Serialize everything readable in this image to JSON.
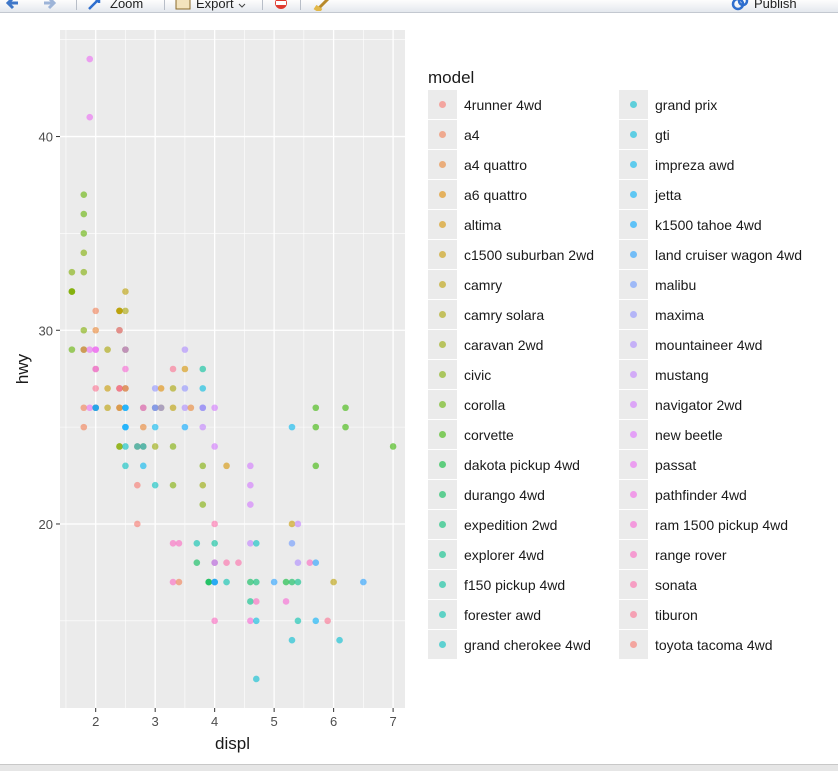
{
  "toolbar": {
    "zoom_label": "Zoom",
    "export_label": "Export",
    "publish_label": "Publish"
  },
  "colors": {
    "panel_bg": "#ebebeb",
    "grid": "#ffffff",
    "publish_icon": "#2f6fce",
    "export_icon": "#d9b26a",
    "zoom_icon": "#2f6fce"
  },
  "icons": [
    "back-arrow-icon",
    "forward-arrow-icon",
    "zoom-icon",
    "export-icon",
    "clear-plot-icon",
    "broom-icon",
    "publish-icon"
  ],
  "legend": {
    "title": "model",
    "entries": [
      {
        "label": "4runner 4wd",
        "color": "#F8766D"
      },
      {
        "label": "a4",
        "color": "#F27D52"
      },
      {
        "label": "a4 quattro",
        "color": "#EA8331"
      },
      {
        "label": "a6 quattro",
        "color": "#E08B00"
      },
      {
        "label": "altima",
        "color": "#D59200"
      },
      {
        "label": "c1500 suburban 2wd",
        "color": "#C89900"
      },
      {
        "label": "camry",
        "color": "#BA9E00"
      },
      {
        "label": "camry solara",
        "color": "#A9A400"
      },
      {
        "label": "caravan 2wd",
        "color": "#96A900"
      },
      {
        "label": "civic",
        "color": "#7FAD00"
      },
      {
        "label": "corolla",
        "color": "#62B200"
      },
      {
        "label": "corvette",
        "color": "#39B600"
      },
      {
        "label": "dakota pickup 4wd",
        "color": "#00B934"
      },
      {
        "label": "durango 4wd",
        "color": "#00BB57"
      },
      {
        "label": "expedition 2wd",
        "color": "#00BE71"
      },
      {
        "label": "explorer 4wd",
        "color": "#00BF87"
      },
      {
        "label": "f150 pickup 4wd",
        "color": "#00C09B"
      },
      {
        "label": "forester awd",
        "color": "#00C1AE"
      },
      {
        "label": "grand cherokee 4wd",
        "color": "#00C0C0"
      },
      {
        "label": "grand prix",
        "color": "#00BDD1"
      },
      {
        "label": "gti",
        "color": "#00BAE0"
      },
      {
        "label": "impreza awd",
        "color": "#00B5EE"
      },
      {
        "label": "jetta",
        "color": "#00AFF9"
      },
      {
        "label": "k1500 tahoe 4wd",
        "color": "#00A7FF"
      },
      {
        "label": "land cruiser wagon 4wd",
        "color": "#219FFF"
      },
      {
        "label": "malibu",
        "color": "#6A98FF"
      },
      {
        "label": "maxima",
        "color": "#8F91FF"
      },
      {
        "label": "mountaineer 4wd",
        "color": "#AC88FF"
      },
      {
        "label": "mustang",
        "color": "#C180FF"
      },
      {
        "label": "navigator 2wd",
        "color": "#D277FF"
      },
      {
        "label": "new beetle",
        "color": "#E070FF"
      },
      {
        "label": "passat",
        "color": "#EB6AF4"
      },
      {
        "label": "pathfinder 4wd",
        "color": "#F365E6"
      },
      {
        "label": "ram 1500 pickup 4wd",
        "color": "#F964D4"
      },
      {
        "label": "range rover",
        "color": "#FC66C0"
      },
      {
        "label": "sonata",
        "color": "#FE6BA9"
      },
      {
        "label": "tiburon",
        "color": "#FC708F"
      },
      {
        "label": "toyota tacoma 4wd",
        "color": "#F8766D"
      }
    ]
  },
  "chart_data": {
    "type": "scatter",
    "xlabel": "displ",
    "ylabel": "hwy",
    "xlim": [
      1.4,
      7.2
    ],
    "ylim": [
      10.5,
      45.5
    ],
    "xticks": [
      "2",
      "3",
      "4",
      "5",
      "6",
      "7"
    ],
    "yticks": [
      "20",
      "30",
      "40"
    ],
    "xtick_values": [
      2,
      3,
      4,
      5,
      6,
      7
    ],
    "ytick_values": [
      20,
      30,
      40
    ],
    "grid": true,
    "legend_position": "right",
    "alpha": 0.6,
    "points": [
      [
        1.6,
        33,
        9
      ],
      [
        1.6,
        32,
        9
      ],
      [
        1.6,
        32,
        9
      ],
      [
        1.6,
        29,
        10
      ],
      [
        1.6,
        32,
        9
      ],
      [
        1.8,
        37,
        10
      ],
      [
        1.8,
        35,
        10
      ],
      [
        1.8,
        36,
        10
      ],
      [
        1.8,
        34,
        9
      ],
      [
        1.8,
        33,
        9
      ],
      [
        1.8,
        30,
        9
      ],
      [
        1.8,
        29,
        10
      ],
      [
        1.8,
        26,
        1
      ],
      [
        1.8,
        25,
        1
      ],
      [
        1.8,
        29,
        1
      ],
      [
        1.9,
        44,
        31
      ],
      [
        1.9,
        41,
        31
      ],
      [
        1.9,
        29,
        31
      ],
      [
        1.9,
        26,
        31
      ],
      [
        2.0,
        31,
        1
      ],
      [
        2.0,
        30,
        2
      ],
      [
        2.0,
        28,
        1
      ],
      [
        2.0,
        26,
        2
      ],
      [
        2.0,
        29,
        32
      ],
      [
        2.0,
        29,
        31
      ],
      [
        2.0,
        28,
        31
      ],
      [
        2.0,
        27,
        36
      ],
      [
        2.0,
        26,
        36
      ],
      [
        2.0,
        26,
        21
      ],
      [
        2.0,
        26,
        23
      ],
      [
        2.2,
        26,
        6
      ],
      [
        2.2,
        27,
        5
      ],
      [
        2.2,
        29,
        7
      ],
      [
        2.4,
        31,
        4
      ],
      [
        2.4,
        30,
        8
      ],
      [
        2.4,
        27,
        8
      ],
      [
        2.4,
        24,
        8
      ],
      [
        2.4,
        27,
        35
      ],
      [
        2.4,
        26,
        35
      ],
      [
        2.4,
        30,
        35
      ],
      [
        2.4,
        31,
        7
      ],
      [
        2.4,
        31,
        6
      ],
      [
        2.4,
        26,
        5
      ],
      [
        2.4,
        24,
        9
      ],
      [
        2.4,
        27,
        36
      ],
      [
        2.5,
        32,
        6
      ],
      [
        2.5,
        31,
        7
      ],
      [
        2.5,
        29,
        11
      ],
      [
        2.5,
        27,
        8
      ],
      [
        2.5,
        26,
        22
      ],
      [
        2.5,
        25,
        22
      ],
      [
        2.5,
        24,
        18
      ],
      [
        2.5,
        23,
        18
      ],
      [
        2.5,
        26,
        23
      ],
      [
        2.5,
        25,
        23
      ],
      [
        2.5,
        29,
        31
      ],
      [
        2.5,
        28,
        33
      ],
      [
        2.5,
        27,
        37
      ],
      [
        2.7,
        24,
        37
      ],
      [
        2.7,
        20,
        37
      ],
      [
        2.7,
        22,
        37
      ],
      [
        2.7,
        24,
        17
      ],
      [
        2.8,
        26,
        4
      ],
      [
        2.8,
        25,
        2
      ],
      [
        2.8,
        24,
        3
      ],
      [
        2.8,
        23,
        21
      ],
      [
        2.8,
        24,
        20
      ],
      [
        2.8,
        26,
        30
      ],
      [
        3.0,
        26,
        4
      ],
      [
        3.0,
        24,
        8
      ],
      [
        3.0,
        25,
        21
      ],
      [
        3.0,
        26,
        26
      ],
      [
        3.0,
        27,
        26
      ],
      [
        3.0,
        26,
        25
      ],
      [
        3.0,
        22,
        18
      ],
      [
        3.1,
        27,
        3
      ],
      [
        3.1,
        26,
        5
      ],
      [
        3.1,
        26,
        26
      ],
      [
        3.3,
        28,
        36
      ],
      [
        3.3,
        26,
        6
      ],
      [
        3.3,
        27,
        7
      ],
      [
        3.3,
        24,
        9
      ],
      [
        3.3,
        22,
        9
      ],
      [
        3.3,
        17,
        34
      ],
      [
        3.3,
        19,
        34
      ],
      [
        3.4,
        19,
        34
      ],
      [
        3.4,
        17,
        1
      ],
      [
        3.5,
        27,
        26
      ],
      [
        3.5,
        28,
        4
      ],
      [
        3.5,
        26,
        27
      ],
      [
        3.5,
        29,
        27
      ],
      [
        3.5,
        25,
        23
      ],
      [
        3.6,
        26,
        2
      ],
      [
        3.8,
        27,
        20
      ],
      [
        3.8,
        26,
        20
      ],
      [
        3.8,
        28,
        16
      ],
      [
        3.8,
        25,
        28
      ],
      [
        3.8,
        26,
        29
      ],
      [
        3.8,
        23,
        9
      ],
      [
        3.8,
        21,
        9
      ],
      [
        3.8,
        22,
        8
      ],
      [
        3.7,
        19,
        17
      ],
      [
        3.7,
        18,
        13
      ],
      [
        3.9,
        17,
        12
      ],
      [
        3.9,
        17,
        13
      ],
      [
        4.0,
        26,
        29
      ],
      [
        4.0,
        24,
        29
      ],
      [
        4.0,
        20,
        35
      ],
      [
        4.0,
        18,
        36
      ],
      [
        4.0,
        17,
        15
      ],
      [
        4.0,
        19,
        16
      ],
      [
        4.0,
        15,
        34
      ],
      [
        4.0,
        17,
        25
      ],
      [
        4.0,
        18,
        27
      ],
      [
        4.0,
        17,
        23
      ],
      [
        4.2,
        23,
        4
      ],
      [
        4.2,
        18,
        35
      ],
      [
        4.2,
        17,
        17
      ],
      [
        4.4,
        18,
        35
      ],
      [
        4.6,
        23,
        29
      ],
      [
        4.6,
        22,
        29
      ],
      [
        4.6,
        21,
        29
      ],
      [
        4.6,
        19,
        28
      ],
      [
        4.6,
        17,
        13
      ],
      [
        4.6,
        16,
        15
      ],
      [
        4.6,
        15,
        33
      ],
      [
        4.7,
        12,
        19
      ],
      [
        4.7,
        17,
        14
      ],
      [
        4.7,
        19,
        18
      ],
      [
        4.7,
        16,
        34
      ],
      [
        4.7,
        15,
        20
      ],
      [
        5.0,
        17,
        24
      ],
      [
        5.2,
        17,
        12
      ],
      [
        5.2,
        16,
        33
      ],
      [
        5.3,
        25,
        21
      ],
      [
        5.3,
        20,
        5
      ],
      [
        5.3,
        19,
        25
      ],
      [
        5.3,
        17,
        13
      ],
      [
        5.3,
        14,
        19
      ],
      [
        5.4,
        20,
        28
      ],
      [
        5.4,
        18,
        27
      ],
      [
        5.4,
        15,
        17
      ],
      [
        5.4,
        17,
        15
      ],
      [
        5.6,
        18,
        34
      ],
      [
        5.7,
        26,
        11
      ],
      [
        5.7,
        25,
        11
      ],
      [
        5.7,
        23,
        11
      ],
      [
        5.7,
        18,
        24
      ],
      [
        5.7,
        15,
        22
      ],
      [
        5.9,
        15,
        36
      ],
      [
        6.0,
        17,
        6
      ],
      [
        6.1,
        14,
        19
      ],
      [
        6.2,
        26,
        11
      ],
      [
        6.2,
        25,
        11
      ],
      [
        6.5,
        17,
        24
      ],
      [
        7.0,
        24,
        11
      ]
    ]
  }
}
